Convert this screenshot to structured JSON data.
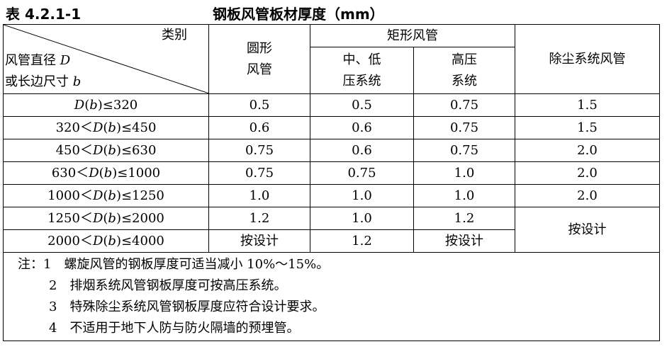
{
  "title": {
    "table_no": "表 4.2.1-1",
    "text": "钢板风管板材厚度（mm）"
  },
  "header": {
    "category": "类别",
    "row_label_line1": "风管直径 D",
    "row_label_line2": "或长边尺寸 b",
    "round_line1": "圆形",
    "round_line2": "风管",
    "rect_group": "矩形风管",
    "rect_low_line1": "中、低",
    "rect_low_line2": "压系统",
    "rect_high_line1": "高压",
    "rect_high_line2": "系统",
    "dust": "除尘系统风管"
  },
  "rows": [
    {
      "size": "D(b)≤320",
      "round": "0.5",
      "low": "0.5",
      "high": "0.75",
      "dust": "1.5"
    },
    {
      "size": "320＜D(b)≤450",
      "round": "0.6",
      "low": "0.6",
      "high": "0.75",
      "dust": "1.5"
    },
    {
      "size": "450＜D(b)≤630",
      "round": "0.75",
      "low": "0.6",
      "high": "0.75",
      "dust": "2.0"
    },
    {
      "size": "630＜D(b)≤1000",
      "round": "0.75",
      "low": "0.75",
      "high": "1.0",
      "dust": "2.0"
    },
    {
      "size": "1000＜D(b)≤1250",
      "round": "1.0",
      "low": "1.0",
      "high": "1.0",
      "dust": "2.0"
    },
    {
      "size": "1250＜D(b)≤2000",
      "round": "1.2",
      "low": "1.0",
      "high": "1.2",
      "dust": "按设计"
    },
    {
      "size": "2000＜D(b)≤4000",
      "round": "按设计",
      "low": "1.2",
      "high": "按设计"
    }
  ],
  "notes": [
    "注：1　螺旋风管的钢板厚度可适当减小 10%～15%。",
    "2　排烟系统风管钢板厚度可按高压系统。",
    "3　特殊除尘系统风管钢板厚度应符合设计要求。",
    "4　不适用于地下人防与防火隔墙的预埋管。"
  ]
}
